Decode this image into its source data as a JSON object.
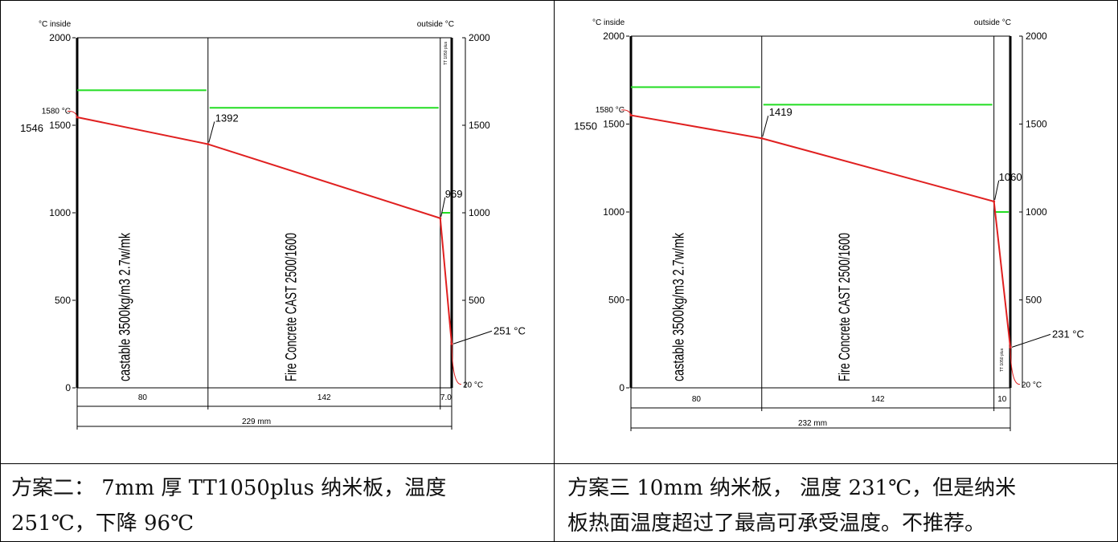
{
  "chart_data": [
    {
      "type": "line",
      "left_axis_label": "°C inside",
      "right_axis_label": "outside °C",
      "ylim": [
        0,
        2000
      ],
      "left_ticks": [
        "0",
        "500",
        "1000",
        "1500",
        "2000"
      ],
      "right_ticks": [
        "500",
        "1000",
        "1500",
        "2000"
      ],
      "layers": [
        {
          "name": "castable 3500kg/m3 2.7w/mk",
          "thickness": "80",
          "width": 80
        },
        {
          "name": "Fire Concrete CAST 2500/1600",
          "thickness": "142",
          "width": 142
        },
        {
          "name": "TT 1050 plus",
          "thickness": "7.0",
          "width": 7
        }
      ],
      "total_thickness": "229 mm",
      "temperature_profile": [
        {
          "x": 0,
          "y": 1546
        },
        {
          "x": 80,
          "y": 1392
        },
        {
          "x": 222,
          "y": 969
        },
        {
          "x": 229,
          "y": 251
        }
      ],
      "max_temperature_lines": [
        {
          "x": [
            0,
            80
          ],
          "y": 1700
        },
        {
          "x": [
            80,
            222
          ],
          "y": 1600
        },
        {
          "x": [
            222,
            229
          ],
          "y": 1000
        }
      ],
      "annotations": {
        "inside_gas": "1580 °C",
        "hot_face": "1546",
        "interface_1": "1392",
        "interface_2": "969",
        "cold_face": "251 °C",
        "ambient": "20 °C"
      },
      "colors": {
        "profile": "#e02020",
        "limit": "#22dd22"
      }
    },
    {
      "type": "line",
      "left_axis_label": "°C inside",
      "right_axis_label": "outside °C",
      "ylim": [
        0,
        2000
      ],
      "left_ticks": [
        "0",
        "500",
        "1000",
        "1500",
        "2000"
      ],
      "right_ticks": [
        "500",
        "1000",
        "1500",
        "2000"
      ],
      "layers": [
        {
          "name": "castable 3500kg/m3 2.7w/mk",
          "thickness": "80",
          "width": 80
        },
        {
          "name": "Fire Concrete CAST 2500/1600",
          "thickness": "142",
          "width": 142
        },
        {
          "name": "TT 1050 plus",
          "thickness": "10",
          "width": 10
        }
      ],
      "total_thickness": "232 mm",
      "temperature_profile": [
        {
          "x": 0,
          "y": 1550
        },
        {
          "x": 80,
          "y": 1419
        },
        {
          "x": 222,
          "y": 1060
        },
        {
          "x": 232,
          "y": 231
        }
      ],
      "max_temperature_lines": [
        {
          "x": [
            0,
            80
          ],
          "y": 1710
        },
        {
          "x": [
            80,
            222
          ],
          "y": 1610
        },
        {
          "x": [
            222,
            232
          ],
          "y": 1000
        }
      ],
      "annotations": {
        "inside_gas": "1580 °C",
        "hot_face": "1550",
        "interface_1": "1419",
        "interface_2": "1060",
        "cold_face": "231 °C",
        "ambient": "20 °C"
      },
      "colors": {
        "profile": "#e02020",
        "limit": "#22dd22"
      }
    }
  ],
  "captions": [
    {
      "line1": "方案二：  7mm 厚 TT1050plus 纳米板，温度",
      "line2": "251℃，下降 96℃"
    },
    {
      "line1": "方案三 10mm 纳米板， 温度 231℃，但是纳米",
      "line2": "板热面温度超过了最高可承受温度。不推荐。"
    }
  ]
}
